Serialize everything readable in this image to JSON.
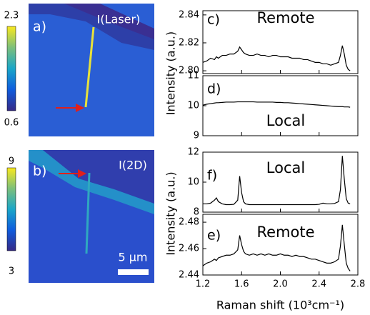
{
  "chart_data": [
    {
      "type": "line",
      "label": "c)",
      "annotation": "Remote",
      "ylabel": "Intensity (a.u.)",
      "x": [
        1.2,
        1.24,
        1.28,
        1.32,
        1.34,
        1.36,
        1.4,
        1.44,
        1.48,
        1.52,
        1.56,
        1.58,
        1.6,
        1.62,
        1.64,
        1.68,
        1.72,
        1.76,
        1.8,
        1.84,
        1.88,
        1.92,
        1.96,
        2.0,
        2.04,
        2.08,
        2.12,
        2.16,
        2.2,
        2.24,
        2.28,
        2.32,
        2.36,
        2.4,
        2.44,
        2.48,
        2.52,
        2.56,
        2.6,
        2.62,
        2.64,
        2.66,
        2.68,
        2.7,
        2.72
      ],
      "values": [
        2.806,
        2.807,
        2.809,
        2.808,
        2.81,
        2.809,
        2.811,
        2.811,
        2.812,
        2.812,
        2.814,
        2.817,
        2.815,
        2.813,
        2.812,
        2.811,
        2.811,
        2.812,
        2.811,
        2.811,
        2.81,
        2.811,
        2.811,
        2.81,
        2.81,
        2.81,
        2.809,
        2.809,
        2.809,
        2.808,
        2.808,
        2.807,
        2.806,
        2.806,
        2.805,
        2.805,
        2.804,
        2.805,
        2.806,
        2.811,
        2.818,
        2.812,
        2.804,
        2.801,
        2.8
      ],
      "color": "#000000",
      "xlim": [
        1.2,
        2.8
      ],
      "xticks": [
        1.2,
        1.6,
        2.0,
        2.4,
        2.8
      ],
      "ylim": [
        2.798,
        2.843
      ],
      "yticks": [
        {
          "value": 2.8,
          "label": "2.80"
        },
        2.82,
        2.84
      ]
    },
    {
      "type": "line",
      "label": "d)",
      "annotation": "Local",
      "x": [
        1.2,
        1.24,
        1.28,
        1.32,
        1.34,
        1.36,
        1.4,
        1.44,
        1.48,
        1.52,
        1.56,
        1.58,
        1.6,
        1.62,
        1.64,
        1.68,
        1.72,
        1.76,
        1.8,
        1.84,
        1.88,
        1.92,
        1.96,
        2.0,
        2.04,
        2.08,
        2.12,
        2.16,
        2.2,
        2.24,
        2.28,
        2.32,
        2.36,
        2.4,
        2.44,
        2.48,
        2.52,
        2.56,
        2.6,
        2.62,
        2.64,
        2.66,
        2.68,
        2.7,
        2.72
      ],
      "values": [
        10.02,
        10.05,
        10.07,
        10.09,
        10.1,
        10.1,
        10.11,
        10.12,
        10.12,
        10.12,
        10.13,
        10.13,
        10.13,
        10.13,
        10.13,
        10.13,
        10.13,
        10.12,
        10.12,
        10.12,
        10.12,
        10.12,
        10.11,
        10.11,
        10.1,
        10.1,
        10.09,
        10.08,
        10.07,
        10.06,
        10.05,
        10.04,
        10.03,
        10.02,
        10.01,
        10.0,
        9.99,
        9.98,
        9.97,
        9.97,
        9.97,
        9.96,
        9.96,
        9.96,
        9.95
      ],
      "color": "#000000",
      "xlim": [
        1.2,
        2.8
      ],
      "xticks": [
        1.2,
        1.6,
        2.0,
        2.4,
        2.8
      ],
      "ylim": [
        9,
        11
      ],
      "yticks": [
        9,
        10,
        11
      ]
    },
    {
      "type": "line",
      "label": "f)",
      "annotation": "Local",
      "ylabel": "Intensity (a.u.)",
      "x": [
        1.2,
        1.24,
        1.28,
        1.32,
        1.34,
        1.36,
        1.4,
        1.44,
        1.48,
        1.52,
        1.56,
        1.58,
        1.6,
        1.62,
        1.64,
        1.68,
        1.72,
        1.76,
        1.8,
        1.84,
        1.88,
        1.92,
        1.96,
        2.0,
        2.04,
        2.08,
        2.12,
        2.16,
        2.2,
        2.24,
        2.28,
        2.32,
        2.36,
        2.4,
        2.44,
        2.48,
        2.52,
        2.56,
        2.6,
        2.62,
        2.64,
        2.66,
        2.68,
        2.7,
        2.72
      ],
      "values": [
        8.55,
        8.55,
        8.6,
        8.8,
        8.95,
        8.7,
        8.55,
        8.5,
        8.5,
        8.52,
        8.8,
        10.4,
        9.3,
        8.7,
        8.55,
        8.5,
        8.5,
        8.5,
        8.5,
        8.5,
        8.5,
        8.5,
        8.5,
        8.5,
        8.5,
        8.5,
        8.5,
        8.5,
        8.5,
        8.5,
        8.5,
        8.5,
        8.5,
        8.52,
        8.6,
        8.55,
        8.55,
        8.58,
        8.7,
        9.5,
        11.75,
        10.2,
        8.9,
        8.6,
        8.55
      ],
      "color": "#000000",
      "xlim": [
        1.2,
        2.8
      ],
      "xticks": [
        1.2,
        1.6,
        2.0,
        2.4,
        2.8
      ],
      "ylim": [
        8,
        12
      ],
      "yticks": [
        8,
        10,
        12
      ]
    },
    {
      "type": "line",
      "label": "e)",
      "annotation": "Remote",
      "xlabel": "Raman shift (10³cm⁻¹)",
      "x": [
        1.2,
        1.24,
        1.28,
        1.32,
        1.34,
        1.36,
        1.4,
        1.44,
        1.48,
        1.52,
        1.56,
        1.58,
        1.6,
        1.62,
        1.64,
        1.68,
        1.72,
        1.76,
        1.8,
        1.84,
        1.88,
        1.92,
        1.96,
        2.0,
        2.04,
        2.08,
        2.12,
        2.16,
        2.2,
        2.24,
        2.28,
        2.32,
        2.36,
        2.4,
        2.44,
        2.48,
        2.52,
        2.56,
        2.6,
        2.62,
        2.64,
        2.66,
        2.68,
        2.7,
        2.72
      ],
      "values": [
        2.447,
        2.449,
        2.45,
        2.452,
        2.451,
        2.453,
        2.454,
        2.455,
        2.455,
        2.456,
        2.459,
        2.47,
        2.463,
        2.458,
        2.456,
        2.455,
        2.456,
        2.455,
        2.456,
        2.455,
        2.456,
        2.455,
        2.455,
        2.456,
        2.455,
        2.455,
        2.454,
        2.455,
        2.454,
        2.454,
        2.453,
        2.452,
        2.452,
        2.451,
        2.45,
        2.449,
        2.449,
        2.45,
        2.452,
        2.462,
        2.478,
        2.463,
        2.449,
        2.445,
        2.443
      ],
      "color": "#000000",
      "xlim": [
        1.2,
        2.8
      ],
      "xticks": [
        1.2,
        1.6,
        {
          "value": 2.0,
          "label": "2.0"
        },
        2.4,
        2.8
      ],
      "ylim": [
        2.44,
        2.486
      ],
      "yticks": [
        2.44,
        2.46,
        2.48
      ]
    }
  ],
  "panels": [
    {
      "label": "a)",
      "title": "I(Laser)",
      "colorbar_max": 2.3,
      "colorbar_min": 0.6
    },
    {
      "label": "b)",
      "title": "I(2D)",
      "colorbar_max": 9,
      "colorbar_min": 3,
      "scalebar": "5 µm"
    }
  ]
}
